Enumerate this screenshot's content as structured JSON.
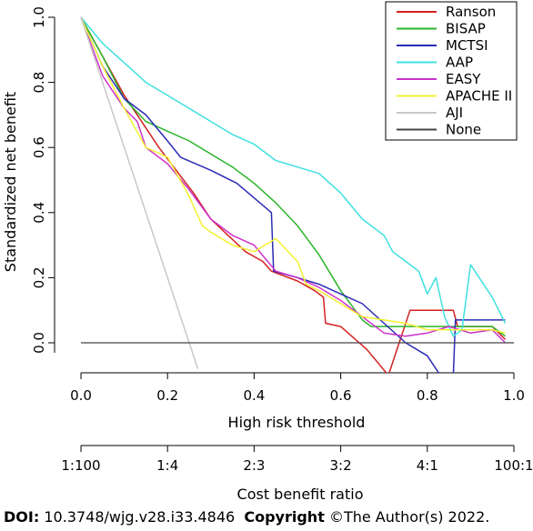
{
  "chart_data": {
    "type": "line",
    "title": "",
    "xlabel": "High risk threshold",
    "ylabel": "Standardized net benefit",
    "xlim": [
      0,
      1
    ],
    "ylim": [
      -0.08,
      1.0
    ],
    "x_ticks": [
      "0.0",
      "0.2",
      "0.4",
      "0.6",
      "0.8",
      "1.0"
    ],
    "y_ticks": [
      "0.0",
      "0.2",
      "0.4",
      "0.6",
      "0.8",
      "1.0"
    ],
    "secondary_axis": {
      "label": "Cost benefit ratio",
      "ticks": [
        "1:100",
        "1:4",
        "2:3",
        "3:2",
        "4:1",
        "100:1"
      ],
      "tick_positions": [
        0.0,
        0.2,
        0.4,
        0.6,
        0.8,
        1.0
      ]
    },
    "grid": false,
    "legend_position": "top-right",
    "series": [
      {
        "name": "Ranson",
        "color": "#d42020",
        "x": [
          0.0,
          0.1,
          0.18,
          0.22,
          0.26,
          0.3,
          0.34,
          0.38,
          0.42,
          0.44,
          0.5,
          0.54,
          0.56,
          0.565,
          0.6,
          0.66,
          0.71,
          0.76,
          0.765,
          0.8,
          0.85,
          0.86,
          0.87,
          0.9,
          0.95,
          0.98
        ],
        "y": [
          1.0,
          0.76,
          0.6,
          0.53,
          0.46,
          0.38,
          0.33,
          0.28,
          0.25,
          0.22,
          0.19,
          0.16,
          0.14,
          0.06,
          0.05,
          -0.02,
          -0.1,
          0.1,
          0.1,
          0.1,
          0.1,
          0.1,
          0.05,
          0.05,
          0.05,
          0.01
        ]
      },
      {
        "name": "BISAP",
        "color": "#2bb52b",
        "x": [
          0.0,
          0.05,
          0.1,
          0.15,
          0.2,
          0.25,
          0.3,
          0.35,
          0.4,
          0.45,
          0.5,
          0.55,
          0.6,
          0.65,
          0.67,
          0.7,
          0.75,
          0.8,
          0.85,
          0.9,
          0.95,
          0.98
        ],
        "y": [
          1.0,
          0.88,
          0.75,
          0.68,
          0.65,
          0.62,
          0.58,
          0.54,
          0.49,
          0.43,
          0.36,
          0.27,
          0.16,
          0.07,
          0.05,
          0.05,
          0.05,
          0.05,
          0.05,
          0.05,
          0.05,
          0.02
        ]
      },
      {
        "name": "MCTSI",
        "color": "#2b2bb5",
        "x": [
          0.0,
          0.05,
          0.1,
          0.15,
          0.2,
          0.23,
          0.3,
          0.36,
          0.44,
          0.445,
          0.5,
          0.55,
          0.6,
          0.65,
          0.7,
          0.75,
          0.8,
          0.83,
          0.84,
          0.86,
          0.865,
          0.9,
          0.95,
          0.97,
          0.98
        ],
        "y": [
          1.0,
          0.85,
          0.75,
          0.7,
          0.62,
          0.57,
          0.53,
          0.49,
          0.4,
          0.22,
          0.2,
          0.18,
          0.15,
          0.12,
          0.06,
          0.0,
          -0.04,
          -0.1,
          -0.1,
          -0.1,
          0.07,
          0.07,
          0.07,
          0.07,
          0.07
        ]
      },
      {
        "name": "AAP",
        "color": "#40e0e0",
        "x": [
          0.0,
          0.05,
          0.1,
          0.15,
          0.2,
          0.25,
          0.3,
          0.35,
          0.4,
          0.45,
          0.5,
          0.55,
          0.6,
          0.65,
          0.7,
          0.72,
          0.75,
          0.78,
          0.8,
          0.82,
          0.84,
          0.86,
          0.88,
          0.9,
          0.92,
          0.95,
          0.98
        ],
        "y": [
          1.0,
          0.92,
          0.86,
          0.8,
          0.76,
          0.72,
          0.68,
          0.64,
          0.61,
          0.56,
          0.54,
          0.52,
          0.46,
          0.38,
          0.33,
          0.28,
          0.25,
          0.22,
          0.15,
          0.2,
          0.08,
          0.02,
          0.04,
          0.24,
          0.2,
          0.14,
          0.06
        ]
      },
      {
        "name": "EASY",
        "color": "#cc33cc",
        "x": [
          0.0,
          0.05,
          0.1,
          0.13,
          0.15,
          0.2,
          0.25,
          0.3,
          0.35,
          0.4,
          0.45,
          0.5,
          0.55,
          0.6,
          0.65,
          0.7,
          0.75,
          0.8,
          0.85,
          0.9,
          0.95,
          0.98
        ],
        "y": [
          1.0,
          0.82,
          0.72,
          0.68,
          0.6,
          0.55,
          0.47,
          0.38,
          0.33,
          0.3,
          0.22,
          0.2,
          0.17,
          0.13,
          0.08,
          0.03,
          0.02,
          0.03,
          0.05,
          0.03,
          0.04,
          0.0
        ]
      },
      {
        "name": "APACHE II",
        "color": "#f2f230",
        "x": [
          0.0,
          0.05,
          0.1,
          0.15,
          0.2,
          0.25,
          0.28,
          0.3,
          0.35,
          0.4,
          0.45,
          0.5,
          0.52,
          0.55,
          0.6,
          0.65,
          0.7,
          0.75,
          0.8,
          0.85,
          0.9,
          0.95,
          0.98
        ],
        "y": [
          1.0,
          0.85,
          0.72,
          0.6,
          0.57,
          0.45,
          0.36,
          0.34,
          0.3,
          0.28,
          0.32,
          0.25,
          0.18,
          0.16,
          0.12,
          0.08,
          0.07,
          0.06,
          0.04,
          0.04,
          0.04,
          0.04,
          0.03
        ]
      },
      {
        "name": "AJI",
        "color": "#c8c8c8",
        "x": [
          0.0,
          0.27
        ],
        "y": [
          1.0,
          -0.08
        ]
      },
      {
        "name": "None",
        "color": "#444444",
        "x": [
          0.0,
          1.0
        ],
        "y": [
          0.0,
          0.0
        ]
      }
    ]
  },
  "footer": {
    "doi_label": "DOI:",
    "doi_value": "10.3748/wjg.v28.i33.4846",
    "copyright_label": "Copyright",
    "copyright_value": "©The Author(s) 2022."
  }
}
